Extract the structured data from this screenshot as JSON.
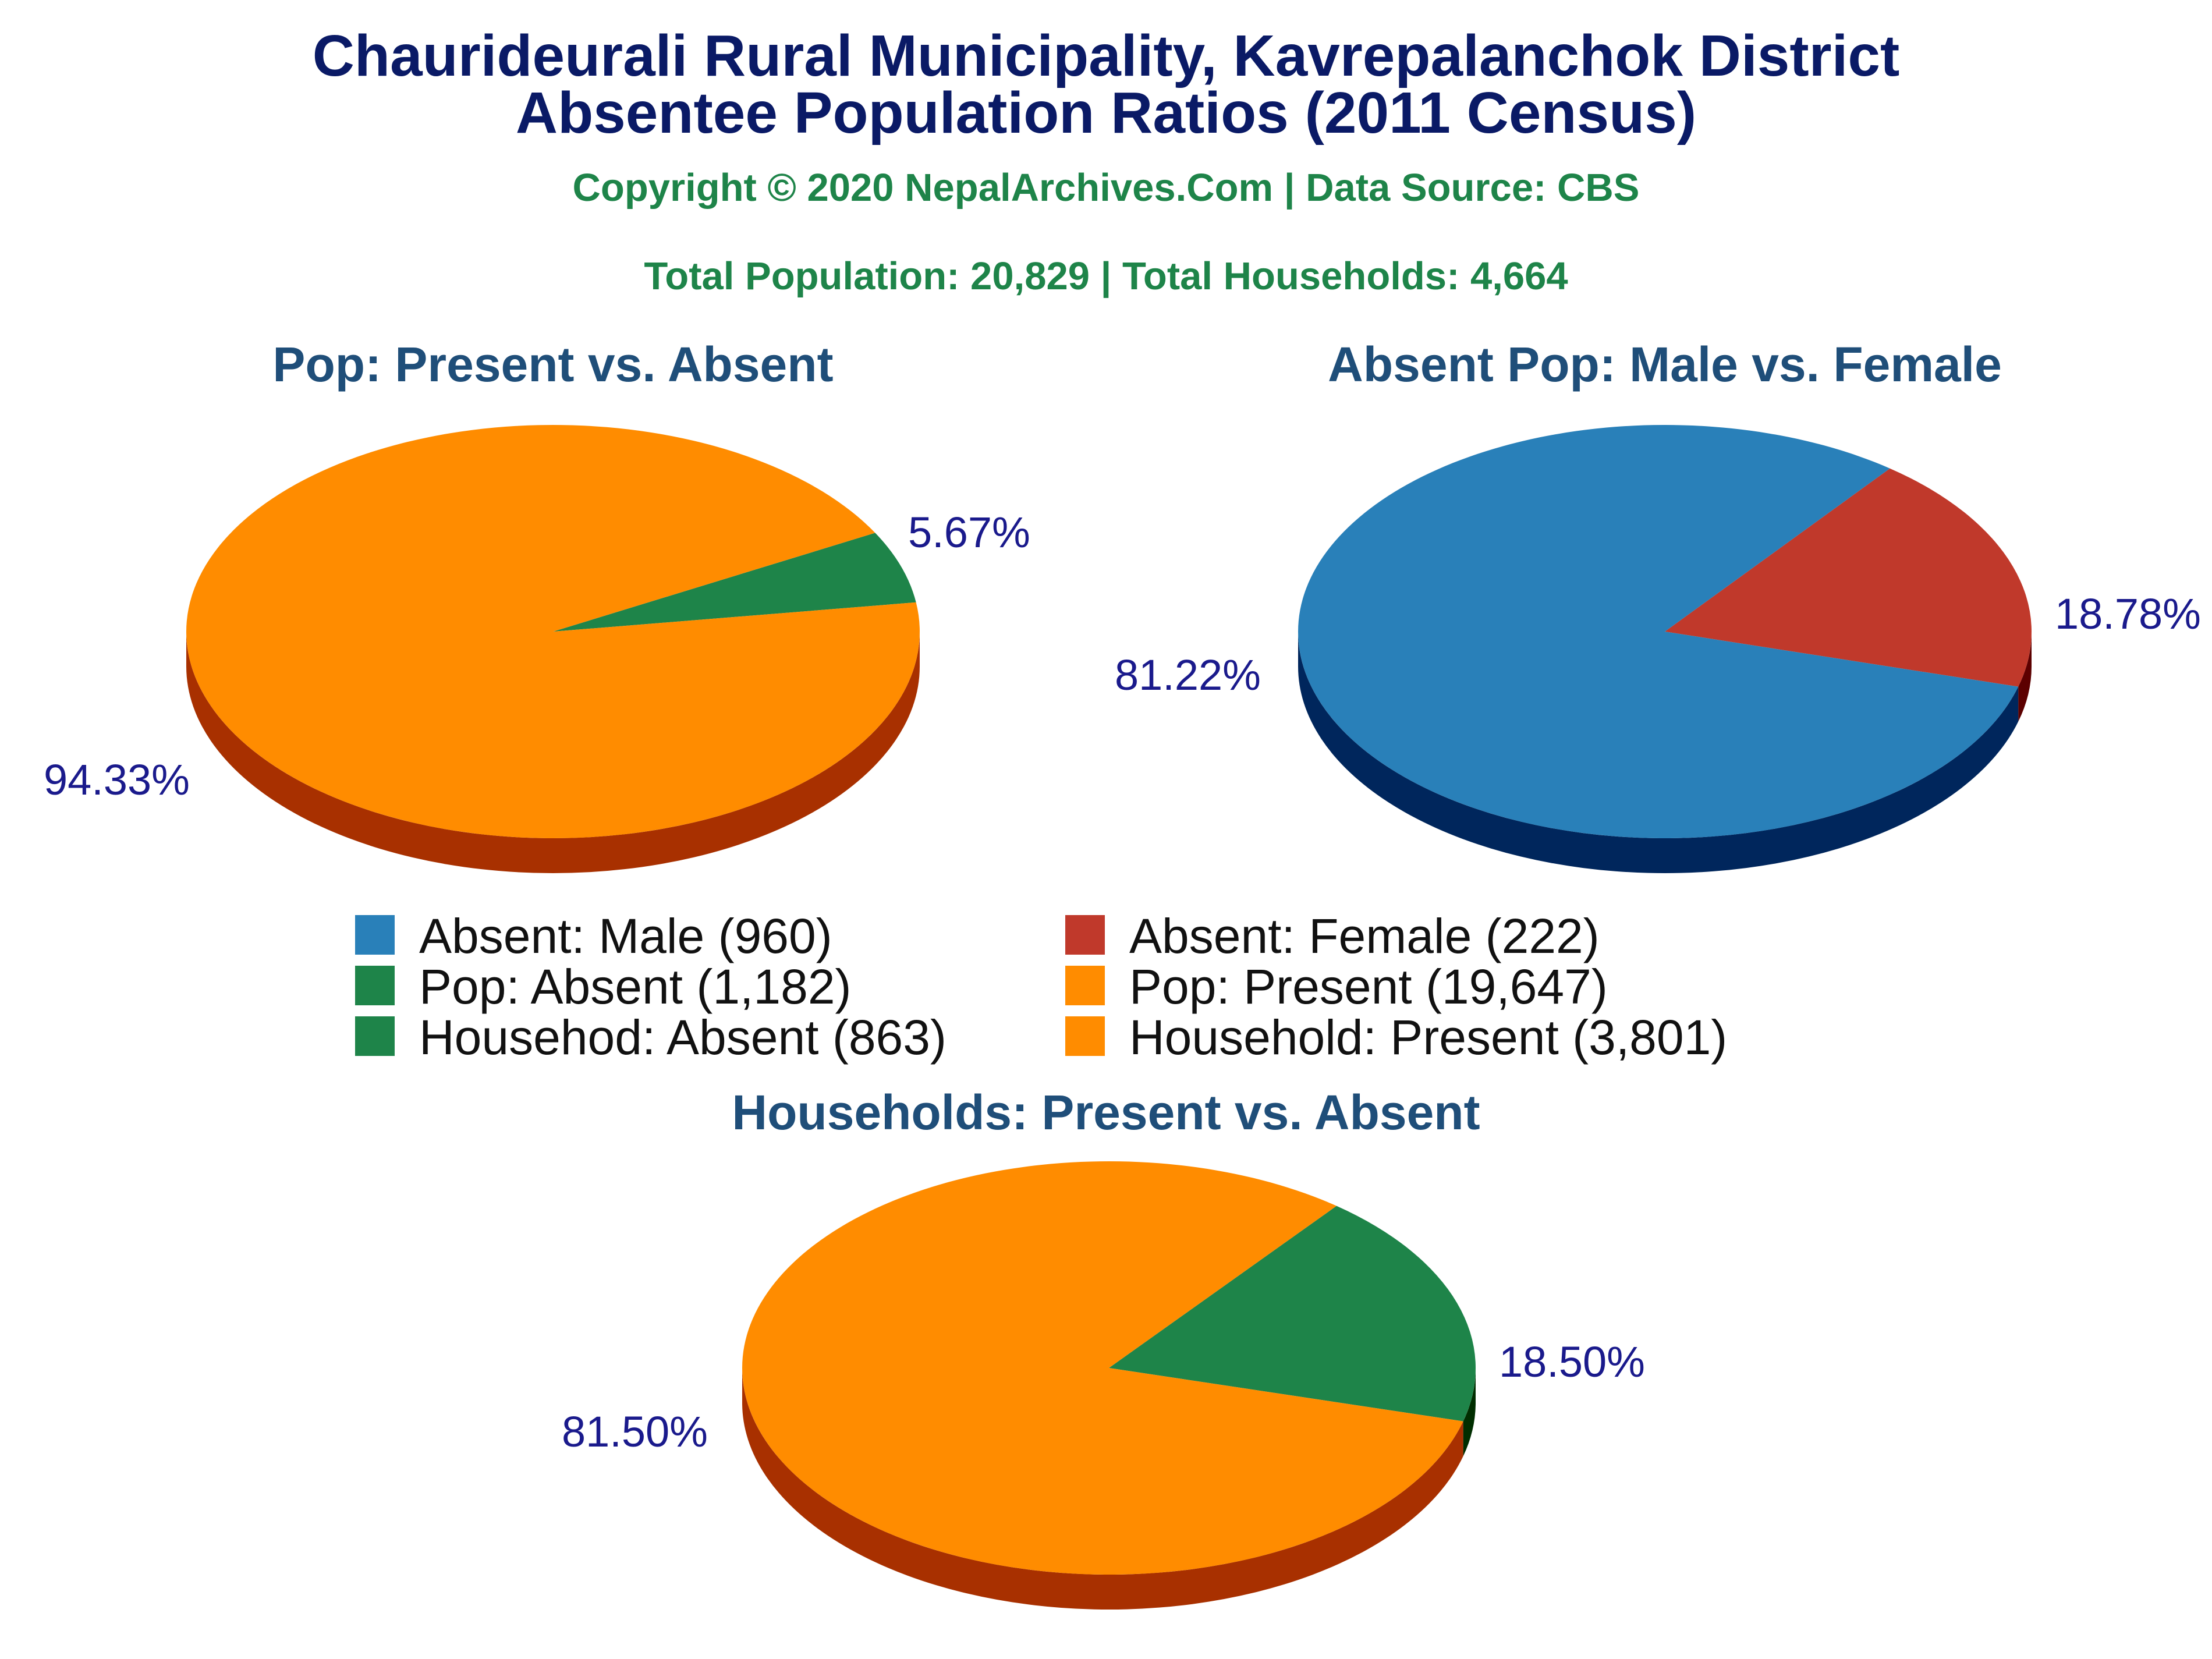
{
  "title_line1": "Chaurideurali Rural Municipality, Kavrepalanchok District",
  "title_line2": "Absentee Population Ratios (2011 Census)",
  "copyright": "Copyright © 2020 NepalArchives.Com | Data Source: CBS",
  "totals": "Total Population: 20,829 | Total Households: 4,664",
  "colors": {
    "title": "#0a1a66",
    "subtitle": "#1e8449",
    "pie_title": "#1f4e79",
    "label": "#1a1a8c"
  },
  "chart_data": [
    {
      "type": "pie",
      "title": "Pop: Present vs. Absent",
      "slices": [
        {
          "name": "Pop: Absent",
          "value": 1182,
          "percent": 5.67,
          "label": "5.67%",
          "color": "#1e8449",
          "side_color": "#0e3d20"
        },
        {
          "name": "Pop: Present",
          "value": 19647,
          "percent": 94.33,
          "label": "94.33%",
          "color": "#ff8c00",
          "side_color": "#a83000"
        }
      ]
    },
    {
      "type": "pie",
      "title": "Absent Pop: Male vs. Female",
      "slices": [
        {
          "name": "Absent: Female",
          "value": 222,
          "percent": 18.78,
          "label": "18.78%",
          "color": "#c0392b",
          "side_color": "#5c0000"
        },
        {
          "name": "Absent: Male",
          "value": 960,
          "percent": 81.22,
          "label": "81.22%",
          "color": "#2980b9",
          "side_color": "#00265c"
        }
      ]
    },
    {
      "type": "pie",
      "title": "Households: Present vs. Absent",
      "slices": [
        {
          "name": "Househod: Absent",
          "value": 863,
          "percent": 18.5,
          "label": "18.50%",
          "color": "#1e8449",
          "side_color": "#002e00"
        },
        {
          "name": "Household: Present",
          "value": 3801,
          "percent": 81.5,
          "label": "81.50%",
          "color": "#ff8c00",
          "side_color": "#a83000"
        }
      ]
    }
  ],
  "legend": [
    {
      "text": "Absent: Male (960)",
      "color": "#2980b9"
    },
    {
      "text": "Absent: Female (222)",
      "color": "#c0392b"
    },
    {
      "text": "Pop: Absent (1,182)",
      "color": "#1e8449"
    },
    {
      "text": "Pop: Present (19,647)",
      "color": "#ff8c00"
    },
    {
      "text": "Househod: Absent (863)",
      "color": "#1e8449"
    },
    {
      "text": "Household: Present (3,801)",
      "color": "#ff8c00"
    }
  ]
}
